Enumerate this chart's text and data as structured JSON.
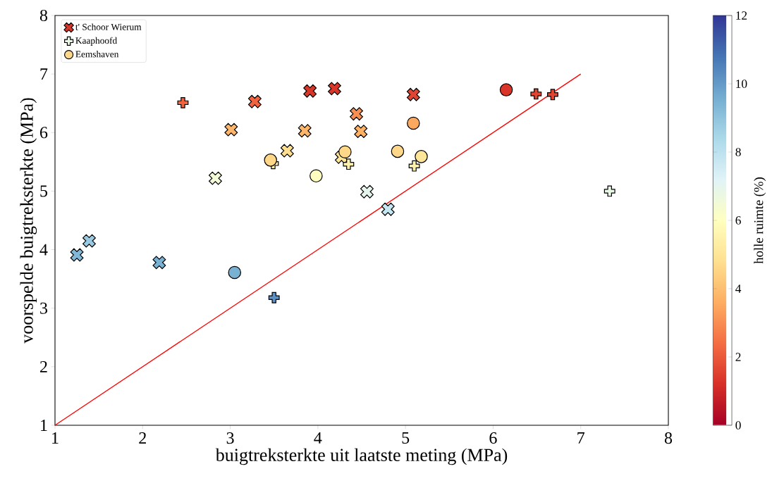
{
  "chart_data": {
    "type": "scatter",
    "xlabel": "buigtreksterkte uit laatste meting (MPa)",
    "ylabel": "voorspelde buigtreksterkte (MPa)",
    "clabel": "holle ruimte (%)",
    "xlim": [
      1,
      8
    ],
    "ylim": [
      1,
      8
    ],
    "xticks": [
      1,
      2,
      3,
      4,
      5,
      6,
      7,
      8
    ],
    "yticks": [
      1,
      2,
      3,
      4,
      5,
      6,
      7,
      8
    ],
    "clim": [
      0,
      12
    ],
    "cticks": [
      0,
      2,
      4,
      6,
      8,
      10,
      12
    ],
    "legend": "top left",
    "series": [
      {
        "name": "t' Schoor Wierum",
        "marker": "cross",
        "x": [
          3.91,
          4.19,
          3.28,
          5.09,
          3.01,
          3.85,
          4.44,
          4.49,
          3.65,
          4.27,
          2.83,
          4.56,
          4.8,
          1.39,
          1.25,
          2.19
        ],
        "values": [
          6.71,
          6.75,
          6.53,
          6.65,
          6.05,
          6.03,
          6.32,
          6.02,
          5.69,
          5.58,
          5.22,
          4.99,
          4.69,
          4.15,
          3.91,
          3.78
        ],
        "colors": [
          "#d93529",
          "#d93529",
          "#ef633e",
          "#e14430",
          "#fdb669",
          "#fdb669",
          "#f98e52",
          "#fdb265",
          "#fee090",
          "#fee598",
          "#f2fad7",
          "#e5f5ee",
          "#c6e6f1",
          "#99cae1",
          "#82b8d7",
          "#79b1d3"
        ]
      },
      {
        "name": "Kaaphoofd",
        "marker": "plus",
        "x": [
          7.33,
          2.46,
          3.49,
          4.35,
          5.1,
          6.49,
          6.68,
          3.5
        ],
        "values": [
          5.0,
          6.51,
          5.47,
          5.46,
          5.43,
          6.66,
          6.65,
          3.18
        ],
        "colors": [
          "#eaf7e5",
          "#ef633e",
          "#fff2af",
          "#fff2af",
          "#fff2af",
          "#e14430",
          "#e14430",
          "#5d91c3"
        ]
      },
      {
        "name": "Eemshaven",
        "marker": "circle",
        "x": [
          3.46,
          4.31,
          3.98,
          5.09,
          4.91,
          5.18,
          6.15,
          3.05
        ],
        "values": [
          5.53,
          5.67,
          5.26,
          6.16,
          5.68,
          5.59,
          6.73,
          3.61
        ],
        "colors": [
          "#fed888",
          "#fed888",
          "#ffffbf",
          "#fca95f",
          "#fed888",
          "#fee598",
          "#d93529",
          "#79b1d3"
        ]
      },
      {
        "type": "line",
        "color": "#ff0000",
        "marker": "none",
        "x": [
          1,
          7
        ],
        "values": [
          1,
          7
        ]
      }
    ]
  }
}
